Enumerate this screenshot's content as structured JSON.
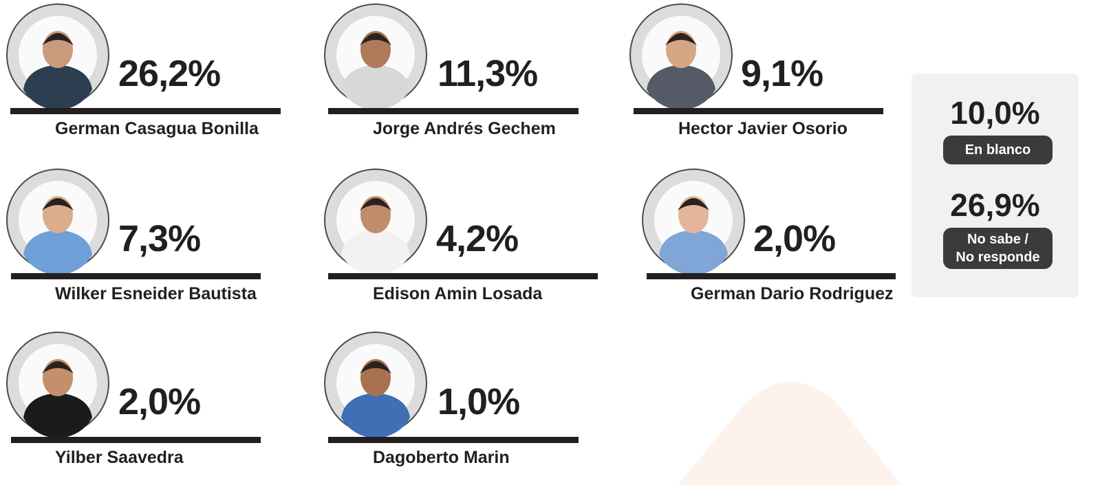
{
  "candidates": [
    {
      "name": "German Casagua Bonilla",
      "percent": "26,2%"
    },
    {
      "name": "Jorge Andrés Gechem",
      "percent": "11,3%"
    },
    {
      "name": "Hector Javier Osorio",
      "percent": "9,1%"
    },
    {
      "name": "Wilker Esneider Bautista",
      "percent": "7,3%"
    },
    {
      "name": "Edison Amin Losada",
      "percent": "4,2%"
    },
    {
      "name": "German Dario Rodriguez",
      "percent": "2,0%"
    },
    {
      "name": "Yilber Saavedra",
      "percent": "2,0%"
    },
    {
      "name": "Dagoberto Marin",
      "percent": "1,0%"
    }
  ],
  "other_responses": [
    {
      "percent": "10,0%",
      "label": "En blanco"
    },
    {
      "percent": "26,9%",
      "label": "No sabe /\nNo responde"
    }
  ]
}
